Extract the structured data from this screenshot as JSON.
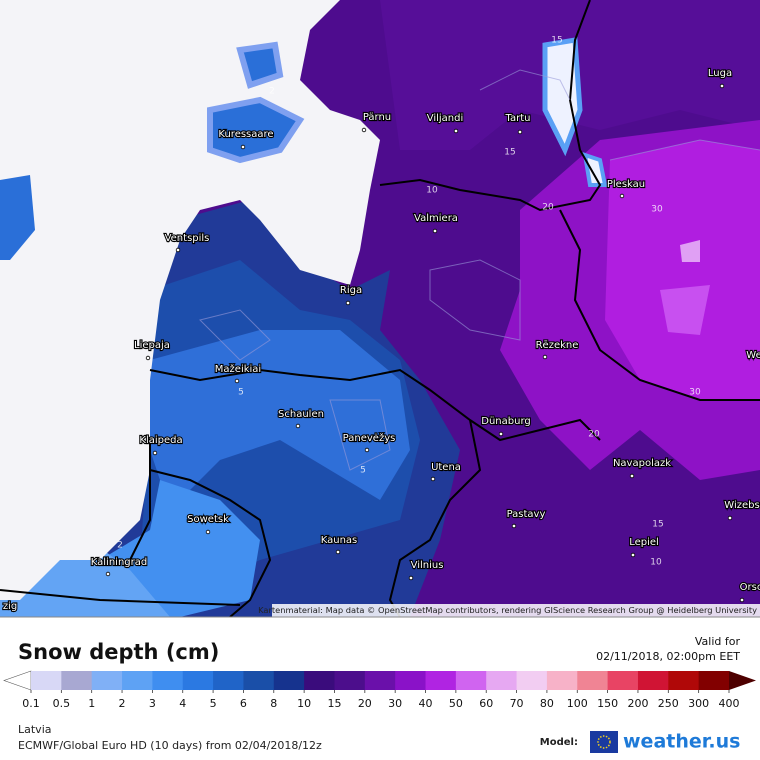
{
  "map": {
    "cities": [
      "Pärnu",
      "Viljandi",
      "Tartu",
      "Luga",
      "Kuressaare",
      "Pleskau",
      "Ventspils",
      "Valmiera",
      "Riga",
      "Liepaja",
      "Rēzekne",
      "Mažeikiai",
      "Schaulen",
      "Panevėžys",
      "Klaipeda",
      "Dünaburg",
      "Utena",
      "Sowetsk",
      "Kaunas",
      "Vilnius",
      "Kaliningrad",
      "Navapolazk",
      "Pastavy",
      "Lepiel",
      "Wizebs",
      "Orsc",
      "We",
      "zig"
    ],
    "contour_labels": [
      "15",
      "15",
      "10",
      "20",
      "30",
      "30",
      "20",
      "5",
      "5",
      "2",
      "2",
      "15",
      "10"
    ],
    "attribution": "Kartenmaterial: Map data © OpenStreetMap contributors, rendering GIScience Research Group @ Heidelberg University"
  },
  "legend": {
    "title": "Snow depth (cm)",
    "valid_label": "Valid for",
    "valid_time": "02/11/2018, 02:00pm EET",
    "ticks": [
      0.1,
      0.5,
      1,
      2,
      3,
      4,
      5,
      6,
      8,
      10,
      15,
      20,
      30,
      40,
      50,
      60,
      70,
      80,
      100,
      150,
      200,
      250,
      300,
      400
    ],
    "colors": [
      "#d8d8f6",
      "#a8a8d2",
      "#80b0f6",
      "#5ea2f4",
      "#3f8ef0",
      "#2b79e2",
      "#2064c8",
      "#1a4fa8",
      "#16338e",
      "#3a0c7c",
      "#4c0e8c",
      "#6a10aa",
      "#8a12c8",
      "#b024e2",
      "#d064f0",
      "#e6a8f2",
      "#f2cdf2",
      "#f7b2c8",
      "#f08494",
      "#e84464",
      "#d01434",
      "#b00808",
      "#820000"
    ],
    "under_color": "#ffffff",
    "over_color": "#4e0000"
  },
  "footer": {
    "region": "Latvia",
    "model_run": "ECMWF/Global Euro HD (10 days) from 02/04/2018/12z",
    "model_label": "Model:",
    "brand": "weather.us"
  }
}
